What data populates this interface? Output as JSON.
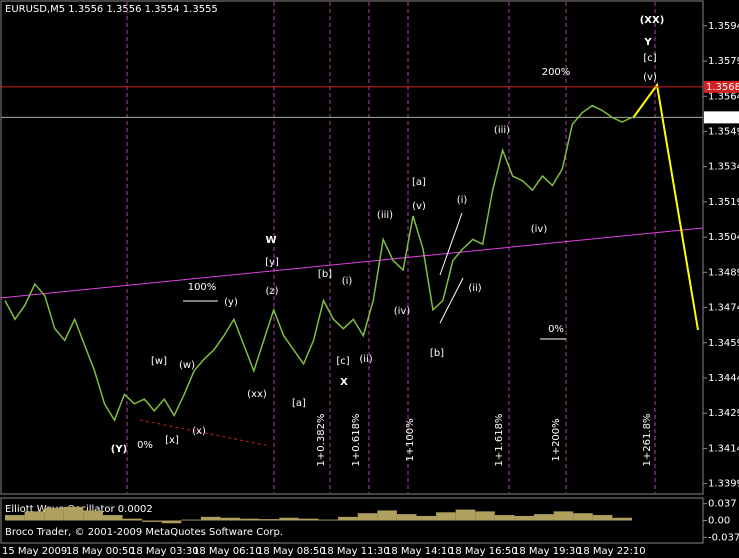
{
  "chart_data": {
    "type": "line",
    "title": "EURUSD,M5 1.3556 1.3556 1.3554 1.3555",
    "x_labels": [
      "15 May 2009",
      "18 May 00:50",
      "18 May 03:30",
      "18 May 06:10",
      "18 May 08:50",
      "18 May 11:30",
      "18 May 14:10",
      "18 May 16:50",
      "18 May 19:30",
      "18 May 22:10"
    ],
    "series": [
      {
        "name": "EURUSD",
        "color": "#7fbf3f",
        "values": [
          1.3477,
          1.3469,
          1.3475,
          1.3484,
          1.3479,
          1.3465,
          1.346,
          1.3469,
          1.3458,
          1.3447,
          1.3433,
          1.3426,
          1.3437,
          1.3433,
          1.3435,
          1.343,
          1.3435,
          1.3428,
          1.3437,
          1.3447,
          1.3452,
          1.3456,
          1.3462,
          1.3469,
          1.3458,
          1.3447,
          1.346,
          1.3473,
          1.3462,
          1.3456,
          1.345,
          1.346,
          1.3477,
          1.3469,
          1.3465,
          1.3469,
          1.3462,
          1.3477,
          1.3503,
          1.3494,
          1.349,
          1.3513,
          1.3499,
          1.3473,
          1.3477,
          1.3494,
          1.3499,
          1.3503,
          1.3501,
          1.3524,
          1.3541,
          1.353,
          1.3528,
          1.3524,
          1.353,
          1.3526,
          1.3533,
          1.3552,
          1.3557,
          1.356,
          1.3558,
          1.3555,
          1.3553,
          1.3555
        ]
      }
    ],
    "ylim": [
      1.3395,
      1.3605
    ],
    "yticks": [
      1.3594,
      1.3579,
      1.3564,
      1.3549,
      1.3534,
      1.3519,
      1.3504,
      1.3489,
      1.3474,
      1.3459,
      1.3444,
      1.3429,
      1.3414,
      1.3399
    ],
    "level_line": 1.3568,
    "bid_line": 1.3555,
    "annotations": [
      "(XX)",
      "Y",
      "[c]",
      "(v)",
      "200%",
      "(iii)",
      "[a]",
      "(v)",
      "(iii)",
      "(i)",
      "(iv)",
      "(ii)",
      "[b]",
      "(iv)",
      "(i)",
      "(ii)",
      "[c]",
      "X",
      "[b]",
      "W",
      "[y]",
      "(z)",
      "(y)",
      "100%",
      "[w]",
      "(w)",
      "(xx)",
      "[a]",
      "(x)",
      "[x]",
      "(Y)",
      "0%",
      "0%"
    ],
    "fib_labels": [
      "1+0.382%",
      "1+0.618%",
      "1+100%",
      "1+1.618%",
      "1+200%",
      "1+261.8%"
    ],
    "oscillator": {
      "title": "Elliott Wave Oscillator 0.0002",
      "values": [
        0.012,
        0.02,
        0.028,
        0.03,
        0.022,
        0.012,
        0.004,
        -0.003,
        -0.006,
        0.002,
        0.008,
        0.006,
        0.004,
        0.003,
        0.006,
        0.004,
        0.002,
        0.008,
        0.016,
        0.022,
        0.014,
        0.01,
        0.018,
        0.024,
        0.02,
        0.012,
        0.01,
        0.014,
        0.02,
        0.016,
        0.012,
        0.006
      ],
      "ylim": [
        -0.045,
        0.045
      ],
      "yticks": [
        0.037,
        {
          "value": 0,
          "label": "0.00"
        },
        -0.037
      ]
    },
    "footer": "Broco Trader, © 2001-2009 MetaQuotes Software Corp."
  }
}
